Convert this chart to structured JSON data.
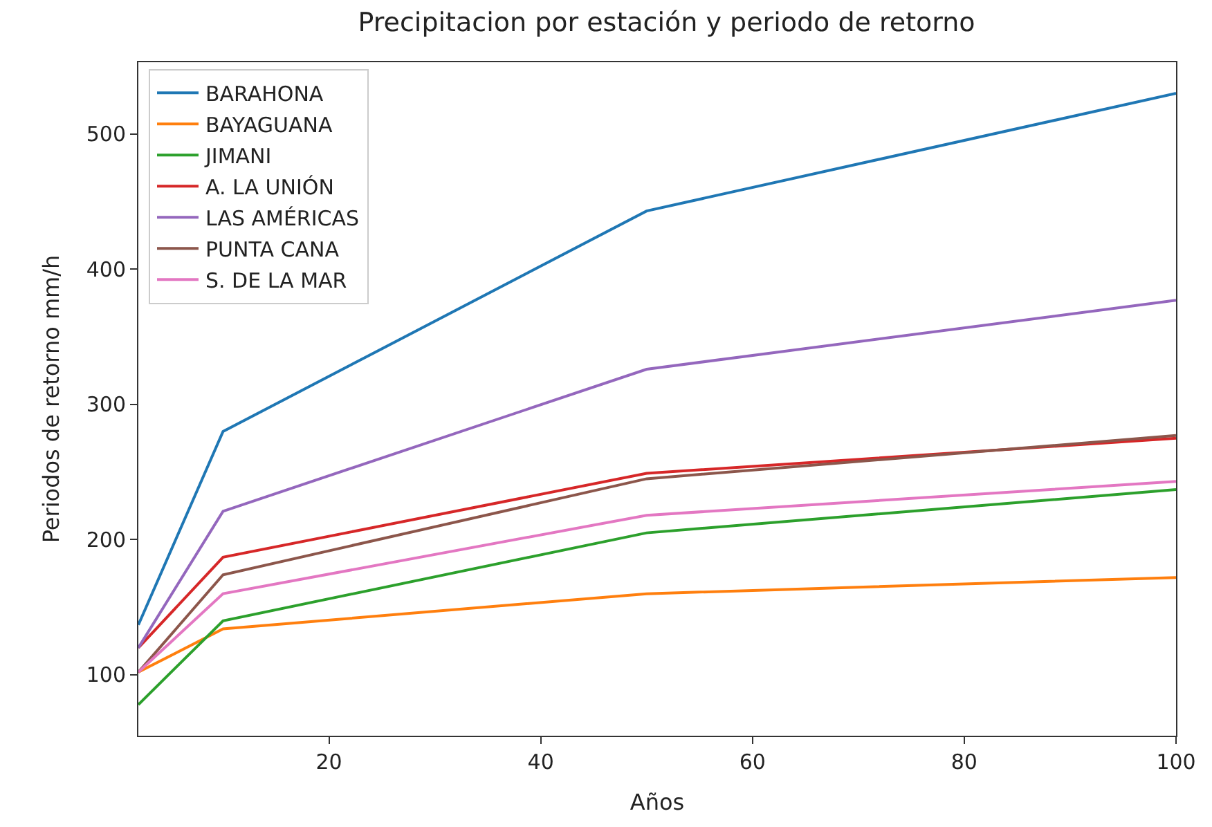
{
  "chart_data": {
    "type": "line",
    "title": "Precipitacion por estación y periodo de retorno",
    "xlabel": "Años",
    "ylabel": "Periodos de retorno mm/h",
    "x": [
      2,
      10,
      50,
      100
    ],
    "series": [
      {
        "name": "BARAHONA",
        "color": "#1f77b4",
        "values": [
          137,
          280,
          443,
          530
        ]
      },
      {
        "name": "BAYAGUANA",
        "color": "#ff7f0e",
        "values": [
          102,
          134,
          160,
          172
        ]
      },
      {
        "name": "JIMANI",
        "color": "#2ca02c",
        "values": [
          78,
          140,
          205,
          237
        ]
      },
      {
        "name": "A. LA UNIÓN",
        "color": "#d62728",
        "values": [
          120,
          187,
          249,
          275
        ]
      },
      {
        "name": "LAS AMÉRICAS",
        "color": "#9467bd",
        "values": [
          120,
          221,
          326,
          377
        ]
      },
      {
        "name": "PUNTA CANA",
        "color": "#8c564b",
        "values": [
          102,
          174,
          245,
          277
        ]
      },
      {
        "name": "S. DE LA MAR",
        "color": "#e377c2",
        "values": [
          102,
          160,
          218,
          243
        ]
      }
    ],
    "xlim": [
      2,
      100
    ],
    "xticks": [
      20,
      40,
      60,
      80,
      100
    ],
    "ylim": [
      55,
      553
    ],
    "yticks": [
      100,
      200,
      300,
      400,
      500
    ],
    "legend": "top left",
    "marker": "none",
    "line_style": "solid"
  }
}
